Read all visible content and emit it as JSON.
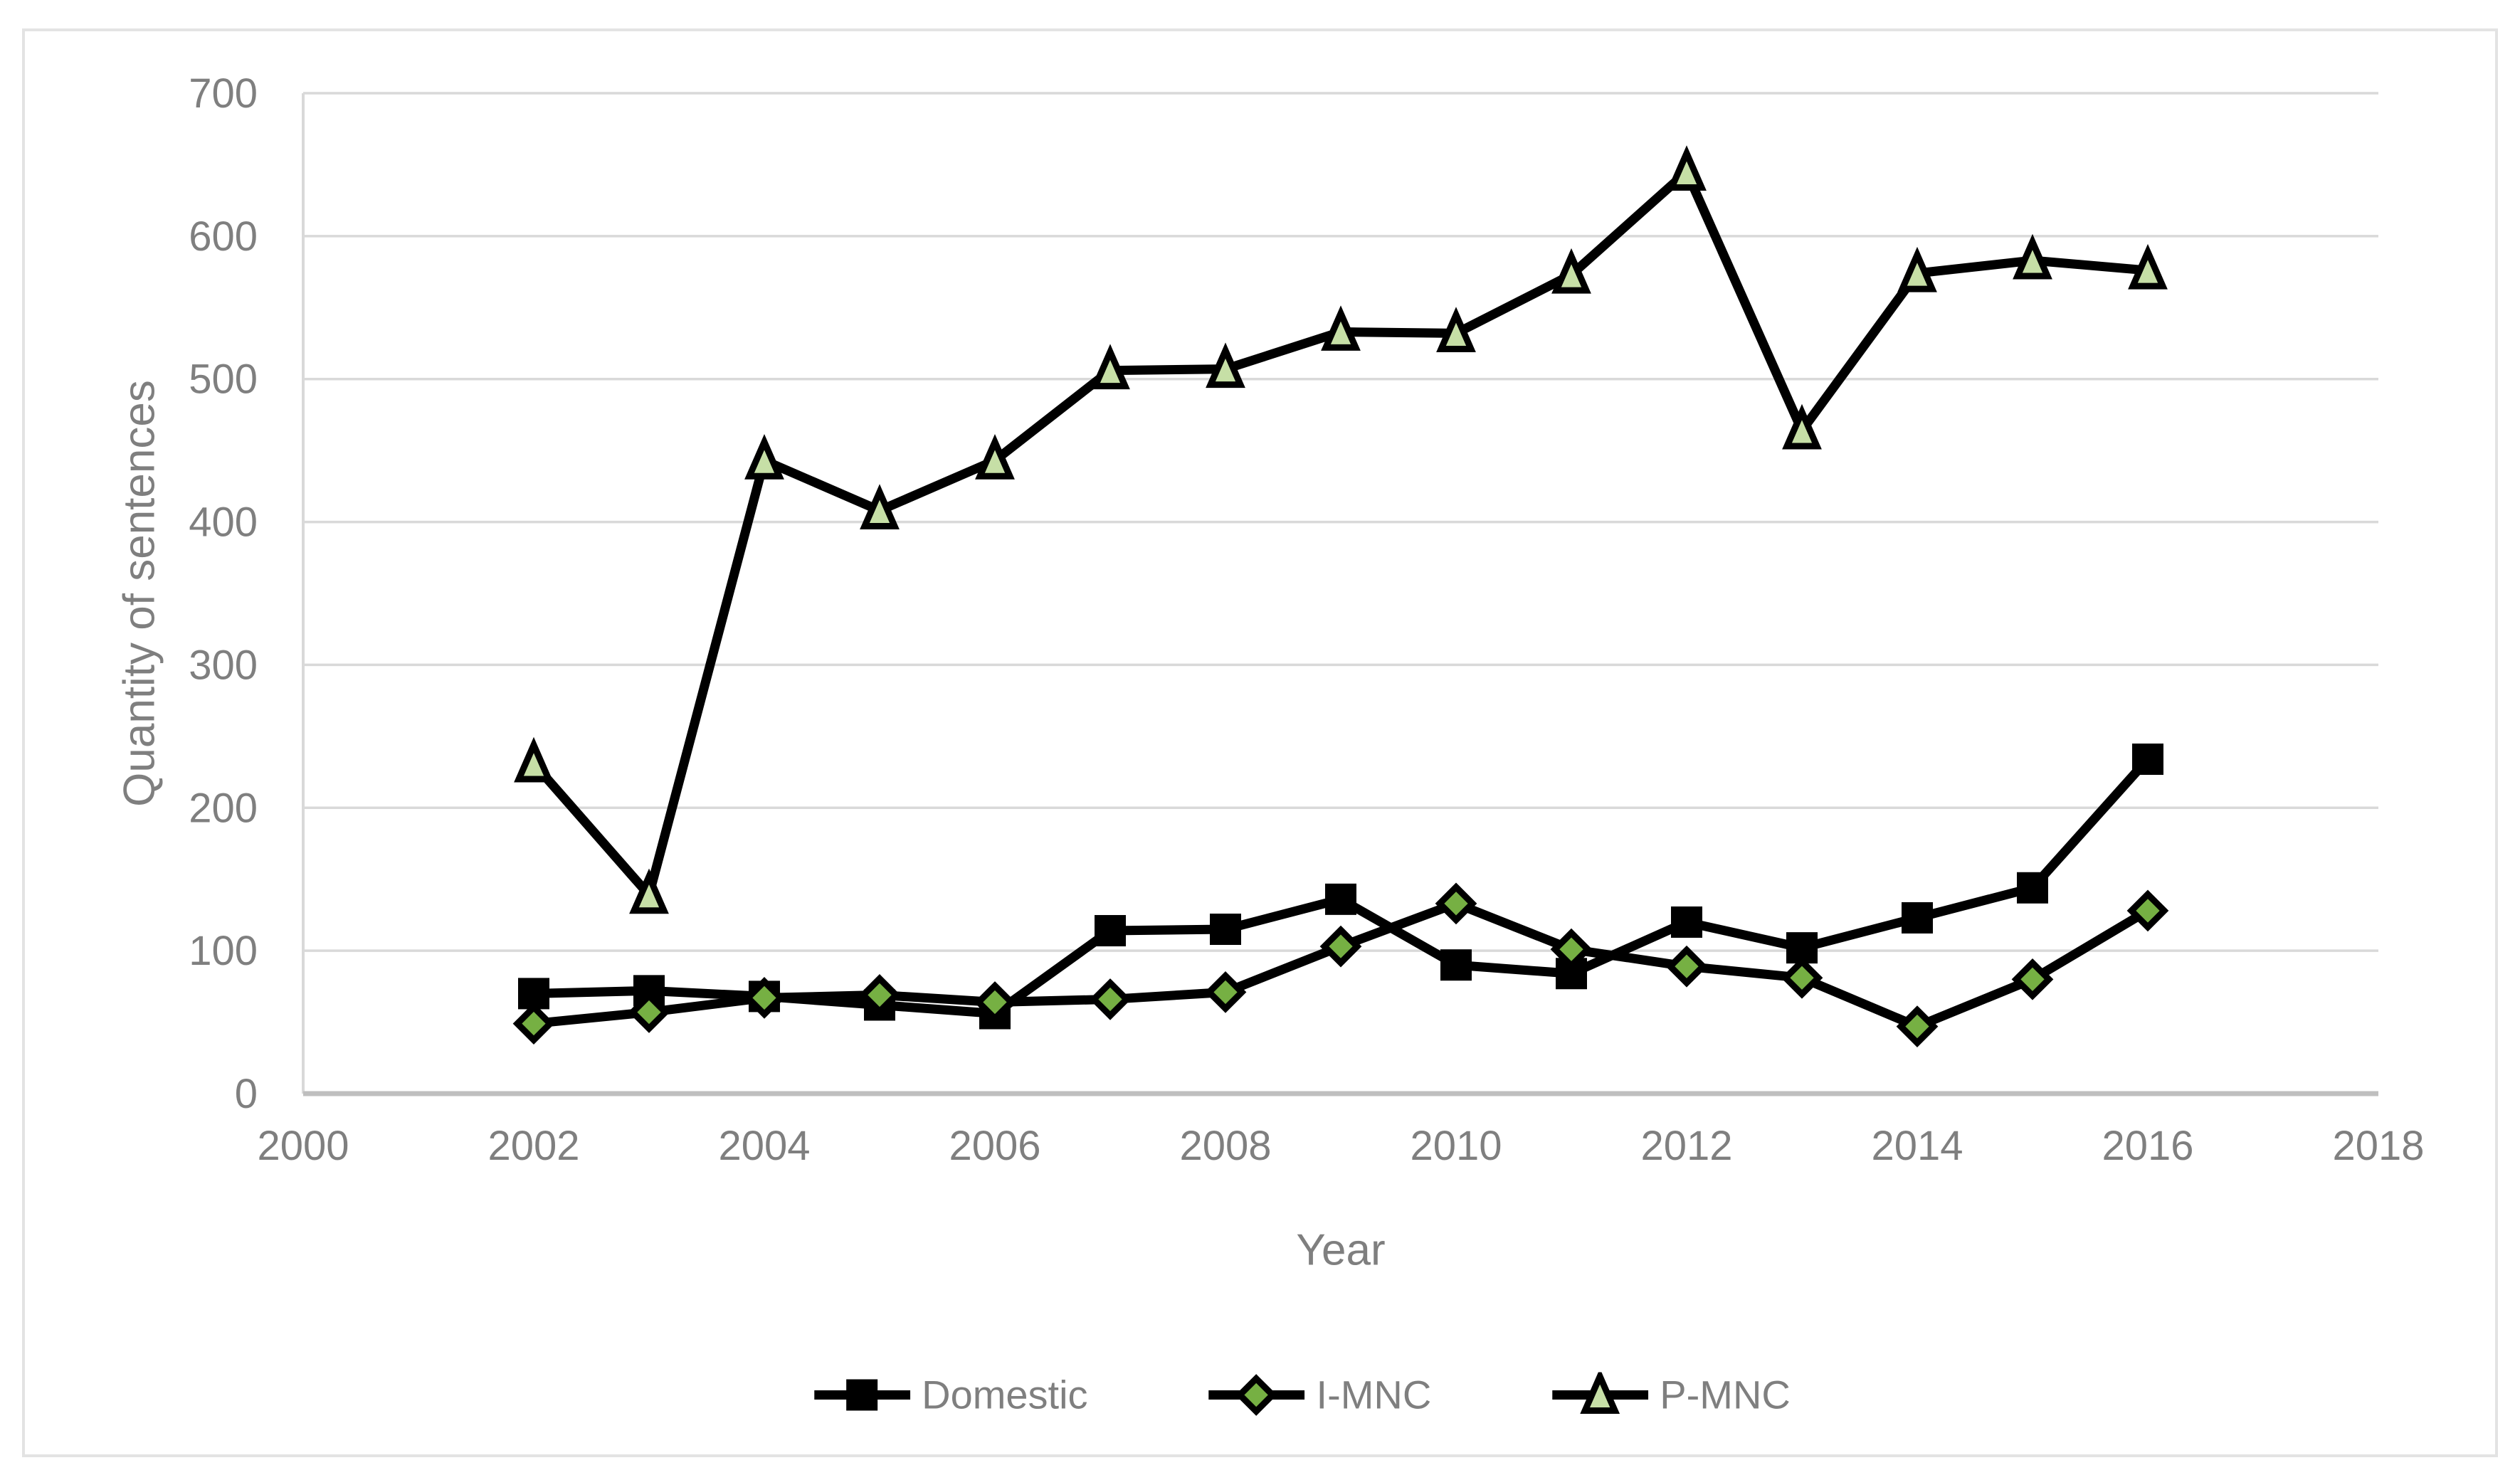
{
  "chart_data": {
    "type": "line",
    "title": "",
    "xlabel": "Year",
    "ylabel": "Quantity of sentences",
    "x": [
      2002,
      2003,
      2004,
      2005,
      2006,
      2007,
      2008,
      2009,
      2010,
      2011,
      2012,
      2013,
      2014,
      2015,
      2016
    ],
    "series": [
      {
        "name": "Domestic",
        "marker": "square",
        "marker_fill": "#000000",
        "marker_stroke": "#000000",
        "line_color": "#000000",
        "values": [
          70,
          72,
          68,
          62,
          56,
          114,
          115,
          136,
          90,
          84,
          120,
          102,
          123,
          144,
          234
        ]
      },
      {
        "name": "I-MNC",
        "marker": "diamond",
        "marker_fill": "#76B043",
        "marker_stroke": "#000000",
        "line_color": "#000000",
        "values": [
          49,
          57,
          67,
          69,
          64,
          66,
          71,
          103,
          133,
          101,
          89,
          81,
          47,
          80,
          128
        ]
      },
      {
        "name": "P-MNC",
        "marker": "triangle",
        "marker_fill": "#C6DFA6",
        "marker_stroke": "#000000",
        "line_color": "#000000",
        "values": [
          231,
          139,
          443,
          408,
          443,
          506,
          507,
          533,
          532,
          573,
          645,
          464,
          574,
          583,
          576
        ]
      }
    ],
    "xlim": [
      2000,
      2018
    ],
    "ylim": [
      0,
      700
    ],
    "x_ticks": [
      2000,
      2002,
      2004,
      2006,
      2008,
      2010,
      2012,
      2014,
      2016,
      2018
    ],
    "y_ticks": [
      0,
      100,
      200,
      300,
      400,
      500,
      600,
      700
    ],
    "grid": "horizontal",
    "legend_position": "bottom-center",
    "colors": {
      "background": "#FFFFFF",
      "figure_border": "#E3E3E3",
      "gridline": "#D9D9D9",
      "y_axis_line": "#D9D9D9",
      "x_axis_line": "#BFBFBF",
      "tick_label": "#7F7F7F",
      "axis_title": "#7F7F7F",
      "legend_text": "#7F7F7F"
    }
  }
}
